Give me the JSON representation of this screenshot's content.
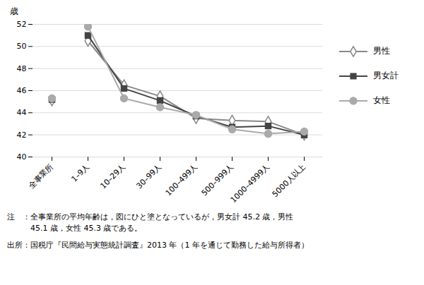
{
  "chart_data": {
    "type": "line",
    "categories": [
      "全事業所",
      "1–9人",
      "10–29人",
      "30–99人",
      "100–499人",
      "500–999人",
      "1000–4999人",
      "5000人以上"
    ],
    "series": [
      {
        "name": "男性",
        "color": "#888888",
        "marker": "diamond_open",
        "values": [
          45.1,
          50.5,
          46.5,
          45.5,
          43.5,
          43.3,
          43.2,
          42.0
        ]
      },
      {
        "name": "男女計",
        "color": "#444444",
        "marker": "square",
        "values": [
          45.2,
          51.0,
          46.2,
          45.1,
          43.7,
          42.7,
          42.8,
          42.0
        ]
      },
      {
        "name": "女性",
        "color": "#aaaaaa",
        "marker": "circle",
        "values": [
          45.3,
          51.8,
          45.3,
          44.5,
          43.8,
          42.5,
          42.1,
          42.3
        ]
      }
    ],
    "y_label": "歳",
    "ylim": [
      40,
      52
    ],
    "yticks": [
      40,
      42,
      44,
      46,
      48,
      50,
      52
    ],
    "grid": true,
    "legend": "right",
    "annotations": [
      "注　：全事業所の平均年齢は，図にひと塗となっているが，男女計 45.2 歳，男性",
      "　　　45.1 歳，女性 45.3 歳である。",
      "出所：国税庁『民間給与実態統計調査』2013 年（1 年を通じて勤務した給与所得者）"
    ]
  }
}
